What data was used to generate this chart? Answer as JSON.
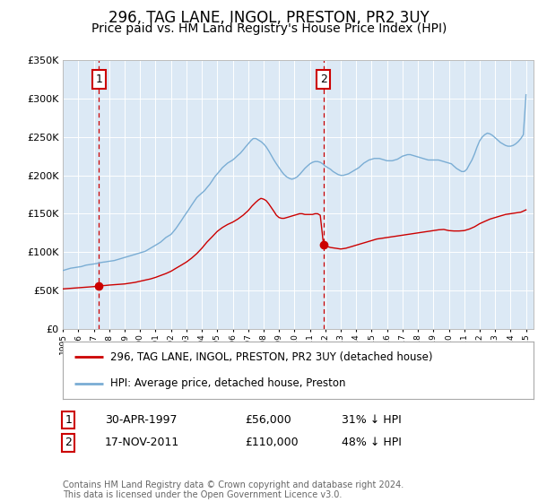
{
  "title": "296, TAG LANE, INGOL, PRESTON, PR2 3UY",
  "subtitle": "Price paid vs. HM Land Registry's House Price Index (HPI)",
  "title_fontsize": 12,
  "subtitle_fontsize": 10,
  "bg_color": "#ffffff",
  "plot_bg_color": "#dce9f5",
  "grid_color": "#ffffff",
  "red_line_color": "#cc0000",
  "blue_line_color": "#7aadd4",
  "marker1_date": 1997.33,
  "marker1_value": 56000,
  "marker2_date": 2011.88,
  "marker2_value": 110000,
  "vline1_date": 1997.33,
  "vline2_date": 2011.88,
  "legend_label_red": "296, TAG LANE, INGOL, PRESTON, PR2 3UY (detached house)",
  "legend_label_blue": "HPI: Average price, detached house, Preston",
  "table_row1": [
    "1",
    "30-APR-1997",
    "£56,000",
    "31% ↓ HPI"
  ],
  "table_row2": [
    "2",
    "17-NOV-2011",
    "£110,000",
    "48% ↓ HPI"
  ],
  "footer": "Contains HM Land Registry data © Crown copyright and database right 2024.\nThis data is licensed under the Open Government Licence v3.0.",
  "ylim": [
    0,
    350000
  ],
  "xlim_start": 1995.0,
  "xlim_end": 2025.5,
  "hpi_x": [
    1995.0,
    1995.08,
    1995.17,
    1995.25,
    1995.33,
    1995.42,
    1995.5,
    1995.58,
    1995.67,
    1995.75,
    1995.83,
    1995.92,
    1996.0,
    1996.08,
    1996.17,
    1996.25,
    1996.33,
    1996.42,
    1996.5,
    1996.58,
    1996.67,
    1996.75,
    1996.83,
    1996.92,
    1997.0,
    1997.08,
    1997.17,
    1997.25,
    1997.33,
    1997.42,
    1997.5,
    1997.58,
    1997.67,
    1997.75,
    1997.83,
    1997.92,
    1998.0,
    1998.17,
    1998.33,
    1998.5,
    1998.67,
    1998.83,
    1999.0,
    1999.17,
    1999.33,
    1999.5,
    1999.67,
    1999.83,
    2000.0,
    2000.17,
    2000.33,
    2000.5,
    2000.67,
    2000.83,
    2001.0,
    2001.17,
    2001.33,
    2001.5,
    2001.67,
    2001.83,
    2002.0,
    2002.17,
    2002.33,
    2002.5,
    2002.67,
    2002.83,
    2003.0,
    2003.17,
    2003.33,
    2003.5,
    2003.67,
    2003.83,
    2004.0,
    2004.17,
    2004.33,
    2004.5,
    2004.67,
    2004.83,
    2005.0,
    2005.17,
    2005.33,
    2005.5,
    2005.67,
    2005.83,
    2006.0,
    2006.17,
    2006.33,
    2006.5,
    2006.67,
    2006.83,
    2007.0,
    2007.17,
    2007.33,
    2007.5,
    2007.67,
    2007.83,
    2008.0,
    2008.17,
    2008.33,
    2008.5,
    2008.67,
    2008.83,
    2009.0,
    2009.17,
    2009.33,
    2009.5,
    2009.67,
    2009.83,
    2010.0,
    2010.17,
    2010.33,
    2010.5,
    2010.67,
    2010.83,
    2011.0,
    2011.17,
    2011.33,
    2011.5,
    2011.67,
    2011.83,
    2012.0,
    2012.17,
    2012.33,
    2012.5,
    2012.67,
    2012.83,
    2013.0,
    2013.17,
    2013.33,
    2013.5,
    2013.67,
    2013.83,
    2014.0,
    2014.17,
    2014.33,
    2014.5,
    2014.67,
    2014.83,
    2015.0,
    2015.17,
    2015.33,
    2015.5,
    2015.67,
    2015.83,
    2016.0,
    2016.17,
    2016.33,
    2016.5,
    2016.67,
    2016.83,
    2017.0,
    2017.17,
    2017.33,
    2017.5,
    2017.67,
    2017.83,
    2018.0,
    2018.17,
    2018.33,
    2018.5,
    2018.67,
    2018.83,
    2019.0,
    2019.17,
    2019.33,
    2019.5,
    2019.67,
    2019.83,
    2020.0,
    2020.17,
    2020.33,
    2020.5,
    2020.67,
    2020.83,
    2021.0,
    2021.17,
    2021.33,
    2021.5,
    2021.67,
    2021.83,
    2022.0,
    2022.17,
    2022.33,
    2022.5,
    2022.67,
    2022.83,
    2023.0,
    2023.17,
    2023.33,
    2023.5,
    2023.67,
    2023.83,
    2024.0,
    2024.17,
    2024.33,
    2024.5,
    2024.67,
    2024.83,
    2025.0
  ],
  "hpi_y": [
    76000,
    76500,
    77000,
    77500,
    78000,
    78500,
    79000,
    79200,
    79500,
    79800,
    80000,
    80300,
    80500,
    80800,
    81000,
    81500,
    82000,
    82500,
    83000,
    83200,
    83500,
    83800,
    84000,
    84200,
    84500,
    84800,
    85000,
    85500,
    86000,
    86200,
    86500,
    86800,
    87000,
    87200,
    87500,
    87800,
    88000,
    88500,
    89000,
    90000,
    91000,
    92000,
    93000,
    94000,
    95000,
    96000,
    97000,
    98000,
    99000,
    100000,
    101000,
    103000,
    105000,
    107000,
    109000,
    111000,
    113000,
    116000,
    119000,
    121000,
    123000,
    127000,
    131000,
    136000,
    141000,
    146000,
    151000,
    156000,
    161000,
    166000,
    171000,
    174000,
    177000,
    180000,
    184000,
    188000,
    193000,
    198000,
    202000,
    206000,
    210000,
    213000,
    216000,
    218000,
    220000,
    223000,
    226000,
    229000,
    233000,
    237000,
    241000,
    245000,
    248000,
    248000,
    246000,
    244000,
    241000,
    237000,
    232000,
    226000,
    220000,
    215000,
    210000,
    205000,
    201000,
    198000,
    196000,
    195000,
    196000,
    198000,
    201000,
    205000,
    209000,
    212000,
    215000,
    217000,
    218000,
    218000,
    217000,
    215000,
    212000,
    210000,
    208000,
    205000,
    203000,
    201000,
    200000,
    200000,
    201000,
    202000,
    204000,
    206000,
    208000,
    210000,
    213000,
    216000,
    218000,
    220000,
    221000,
    222000,
    222000,
    222000,
    221000,
    220000,
    219000,
    219000,
    219000,
    220000,
    221000,
    223000,
    225000,
    226000,
    227000,
    227000,
    226000,
    225000,
    224000,
    223000,
    222000,
    221000,
    220000,
    220000,
    220000,
    220000,
    220000,
    219000,
    218000,
    217000,
    216000,
    215000,
    212000,
    209000,
    207000,
    205000,
    205000,
    208000,
    214000,
    220000,
    228000,
    237000,
    245000,
    250000,
    253000,
    255000,
    254000,
    252000,
    249000,
    246000,
    243000,
    241000,
    239000,
    238000,
    238000,
    239000,
    241000,
    244000,
    248000,
    253000,
    305000
  ],
  "red_x": [
    1995.0,
    1995.33,
    1995.67,
    1996.0,
    1996.33,
    1996.67,
    1997.0,
    1997.25,
    1997.33,
    1997.5,
    1997.75,
    1998.0,
    1998.33,
    1998.67,
    1999.0,
    1999.33,
    1999.67,
    2000.0,
    2000.33,
    2000.67,
    2001.0,
    2001.33,
    2001.67,
    2002.0,
    2002.33,
    2002.67,
    2003.0,
    2003.33,
    2003.67,
    2004.0,
    2004.33,
    2004.67,
    2005.0,
    2005.33,
    2005.67,
    2006.0,
    2006.33,
    2006.67,
    2007.0,
    2007.25,
    2007.5,
    2007.67,
    2007.83,
    2008.0,
    2008.17,
    2008.33,
    2008.5,
    2008.67,
    2008.83,
    2009.0,
    2009.17,
    2009.33,
    2009.5,
    2009.67,
    2009.83,
    2010.0,
    2010.17,
    2010.33,
    2010.5,
    2010.67,
    2010.83,
    2011.0,
    2011.17,
    2011.33,
    2011.5,
    2011.67,
    2011.88,
    2012.0,
    2012.17,
    2012.33,
    2012.5,
    2012.67,
    2012.83,
    2013.0,
    2013.33,
    2013.67,
    2014.0,
    2014.33,
    2014.67,
    2015.0,
    2015.33,
    2015.67,
    2016.0,
    2016.33,
    2016.67,
    2017.0,
    2017.33,
    2017.67,
    2018.0,
    2018.33,
    2018.67,
    2019.0,
    2019.33,
    2019.67,
    2020.0,
    2020.33,
    2020.67,
    2021.0,
    2021.33,
    2021.67,
    2022.0,
    2022.33,
    2022.67,
    2023.0,
    2023.33,
    2023.67,
    2024.0,
    2024.33,
    2024.67,
    2025.0
  ],
  "red_y": [
    52000,
    52500,
    53000,
    53500,
    54000,
    54500,
    55000,
    55500,
    56000,
    56200,
    56500,
    57000,
    57500,
    58000,
    58500,
    59500,
    60500,
    62000,
    63500,
    65000,
    67000,
    69500,
    72000,
    75000,
    79000,
    83000,
    87000,
    92000,
    98000,
    105000,
    113000,
    120000,
    127000,
    132000,
    136000,
    139000,
    143000,
    148000,
    154000,
    160000,
    165000,
    168000,
    170000,
    169000,
    167000,
    163000,
    158000,
    153000,
    148000,
    145000,
    144000,
    144000,
    145000,
    146000,
    147000,
    148000,
    149000,
    150000,
    150000,
    149000,
    149000,
    149000,
    149000,
    150000,
    150000,
    148000,
    110000,
    108000,
    107000,
    106000,
    105500,
    105000,
    104500,
    104000,
    105000,
    107000,
    109000,
    111000,
    113000,
    115000,
    117000,
    118000,
    119000,
    120000,
    121000,
    122000,
    123000,
    124000,
    125000,
    126000,
    127000,
    128000,
    129000,
    129500,
    128000,
    127500,
    127500,
    128000,
    130000,
    133000,
    137000,
    140000,
    143000,
    145000,
    147000,
    149000,
    150000,
    151000,
    152000,
    155000
  ]
}
